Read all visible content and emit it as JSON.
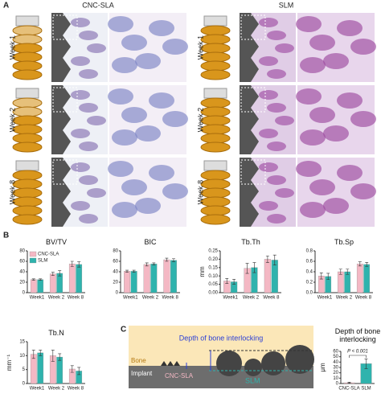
{
  "panel_a": {
    "label": "A",
    "columns": [
      {
        "title": "CNC-SLA",
        "weeks": [
          "Week 1",
          "Week 2",
          "Week 8"
        ]
      },
      {
        "title": "SLM",
        "weeks": [
          "Week 1",
          "Week 2",
          "Week 8"
        ]
      }
    ]
  },
  "panel_b": {
    "label": "B"
  },
  "panel_c": {
    "label": "C",
    "title": "Depth of bone interlocking",
    "bone": "Bone",
    "implant": "Implant",
    "left_surface": "CNC-SLA",
    "right_surface": "SLM"
  },
  "chart_data": [
    {
      "type": "bar",
      "title": "BV/TV",
      "categories": [
        "Week1",
        "Week 2",
        "Week 8"
      ],
      "ylim": [
        0,
        80
      ],
      "yticks": [
        0,
        20,
        40,
        60,
        80
      ],
      "legend": "upper left",
      "series": [
        {
          "name": "CNC-SLA",
          "color": "#f4b8c4",
          "values": [
            25,
            36,
            55
          ],
          "errors": [
            1.5,
            3,
            5
          ]
        },
        {
          "name": "SLM",
          "color": "#2fb3ad",
          "values": [
            25,
            37,
            54
          ],
          "errors": [
            1.5,
            5,
            5
          ]
        }
      ]
    },
    {
      "type": "bar",
      "title": "BIC",
      "categories": [
        "Week1",
        "Week 2",
        "Week 8"
      ],
      "ylim": [
        0,
        80
      ],
      "yticks": [
        0,
        20,
        40,
        60,
        80
      ],
      "series": [
        {
          "name": "CNC-SLA",
          "color": "#f4b8c4",
          "values": [
            41,
            54,
            63
          ],
          "errors": [
            2,
            3,
            3
          ]
        },
        {
          "name": "SLM",
          "color": "#2fb3ad",
          "values": [
            41,
            55,
            62
          ],
          "errors": [
            2,
            2,
            3
          ]
        }
      ]
    },
    {
      "type": "bar",
      "title": "Tb.Th",
      "ylabel": "mm",
      "categories": [
        "Week1",
        "Week 2",
        "Week 8"
      ],
      "ylim": [
        0,
        0.25
      ],
      "yticks": [
        {
          "value": 0,
          "label": "0.00"
        },
        0.05,
        {
          "value": 0.1,
          "label": "0.10"
        },
        0.15,
        {
          "value": 0.2,
          "label": "0.20"
        },
        0.25
      ],
      "series": [
        {
          "name": "CNC-SLA",
          "color": "#f4b8c4",
          "values": [
            0.07,
            0.145,
            0.2
          ],
          "errors": [
            0.015,
            0.03,
            0.02
          ]
        },
        {
          "name": "SLM",
          "color": "#2fb3ad",
          "values": [
            0.065,
            0.15,
            0.195
          ],
          "errors": [
            0.015,
            0.03,
            0.03
          ]
        }
      ]
    },
    {
      "type": "bar",
      "title": "Tb.Sp",
      "categories": [
        "Week1",
        "Week 2",
        "Week 8"
      ],
      "ylim": [
        0,
        0.8
      ],
      "yticks": [
        {
          "value": 0,
          "label": "0.0"
        },
        0.2,
        0.4,
        0.6,
        0.8
      ],
      "series": [
        {
          "name": "CNC-SLA",
          "color": "#f4b8c4",
          "values": [
            0.32,
            0.4,
            0.55
          ],
          "errors": [
            0.06,
            0.05,
            0.04
          ]
        },
        {
          "name": "SLM",
          "color": "#2fb3ad",
          "values": [
            0.31,
            0.4,
            0.54
          ],
          "errors": [
            0.06,
            0.05,
            0.04
          ]
        }
      ]
    },
    {
      "type": "bar",
      "title": "Tb.N",
      "ylabel": "mm⁻¹",
      "categories": [
        "Week1",
        "Week 2",
        "Week 8"
      ],
      "ylim": [
        0,
        15
      ],
      "yticks": [
        0,
        5,
        10,
        15
      ],
      "series": [
        {
          "name": "CNC-SLA",
          "color": "#f4b8c4",
          "values": [
            10.5,
            10,
            5.2
          ],
          "errors": [
            1.5,
            2,
            1.2
          ]
        },
        {
          "name": "SLM",
          "color": "#2fb3ad",
          "values": [
            11,
            9.5,
            4.5
          ],
          "errors": [
            1,
            1.2,
            1.3
          ]
        }
      ]
    },
    {
      "type": "bar",
      "title": "Depth of bone interlocking",
      "ylabel": "μm",
      "categories": [
        "CNC-SLA",
        "SLM"
      ],
      "ylim": [
        0,
        60
      ],
      "yticks": [
        0,
        10,
        20,
        30,
        40,
        50,
        60
      ],
      "annotation": "P < 0.001",
      "colors": [
        "#f4b8c4",
        "#2fb3ad"
      ],
      "series": [
        {
          "values": [
            1.5,
            37
          ],
          "errors": [
            1,
            9
          ]
        }
      ]
    }
  ]
}
